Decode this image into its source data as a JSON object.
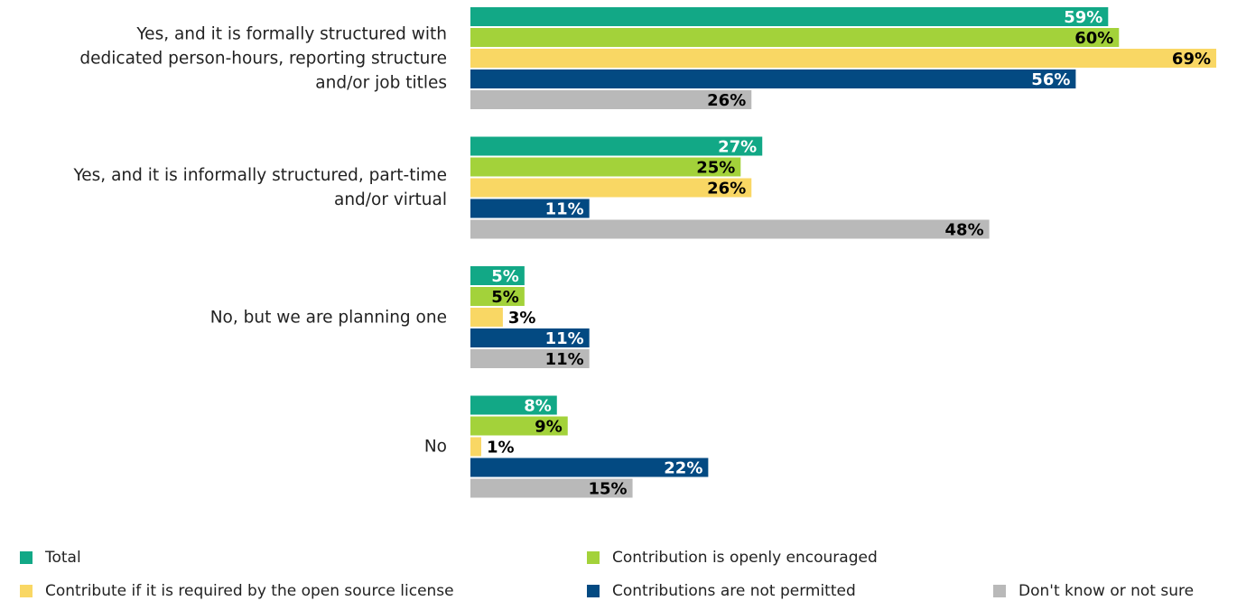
{
  "chart_data": {
    "type": "bar",
    "orientation": "horizontal",
    "categories": [
      "Yes, and it is formally structured with dedicated person-hours, reporting structure and/or job titles",
      "Yes, and it is informally structured, part-time and/or virtual",
      "No, but we are planning one",
      "No"
    ],
    "xlim": [
      0,
      70
    ],
    "series": [
      {
        "name": "Total",
        "color": "#12a886",
        "label_color": "#ffffff",
        "values": [
          59,
          27,
          5,
          8
        ],
        "value_labels": [
          "59%",
          "27%",
          "5%",
          "8%"
        ]
      },
      {
        "name": "Contribution is openly encouraged",
        "color": "#a3d23a",
        "label_color": "#000000",
        "values": [
          60,
          25,
          5,
          9
        ],
        "value_labels": [
          "60%",
          "25%",
          "5%",
          "9%"
        ]
      },
      {
        "name": "Contribute if it is required by the open source license",
        "color": "#f9d764",
        "label_color": "#000000",
        "values": [
          69,
          26,
          3,
          1
        ],
        "value_labels": [
          "69%",
          "26%",
          "3%",
          "1%"
        ]
      },
      {
        "name": "Contributions are not permitted",
        "color": "#034a82",
        "label_color": "#ffffff",
        "values": [
          56,
          11,
          11,
          22
        ],
        "value_labels": [
          "56%",
          "11%",
          "11%",
          "22%"
        ]
      },
      {
        "name": "Don't know or not sure",
        "color": "#b9b9b9",
        "label_color": "#000000",
        "values": [
          26,
          48,
          11,
          15
        ],
        "value_labels": [
          "26%",
          "48%",
          "11%",
          "15%"
        ]
      }
    ]
  }
}
